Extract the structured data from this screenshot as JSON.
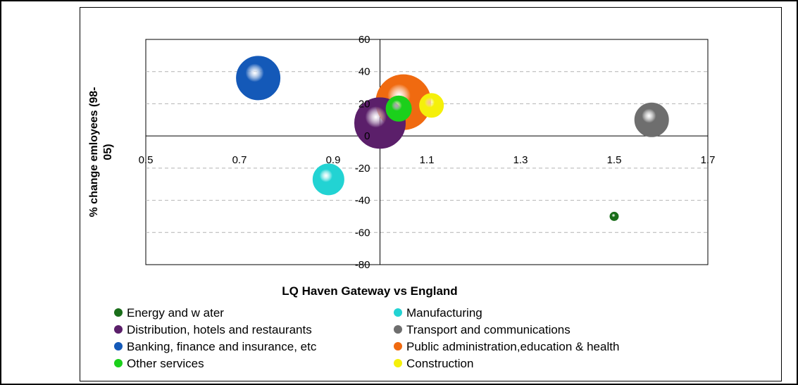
{
  "chart_data": {
    "type": "scatter",
    "title": "",
    "xlabel": "LQ Haven Gateway vs England",
    "ylabel_lines": [
      "% change emloyees (98-",
      "05)"
    ],
    "xlim": [
      0.5,
      1.7
    ],
    "ylim": [
      -80,
      60
    ],
    "x_ticks": [
      "0.5",
      "0.7",
      "0.9",
      "1.1",
      "1.3",
      "1.5",
      "1.7"
    ],
    "y_ticks": [
      "60",
      "40",
      "20",
      "0",
      "-20",
      "-40",
      "-60",
      "-80"
    ],
    "grid": "horizontal dashed",
    "legend_position": "bottom",
    "series": [
      {
        "name": "Energy and w ater",
        "color": "#1a6e1a",
        "x": 1.5,
        "y": -50,
        "size": 6
      },
      {
        "name": "Manufacturing",
        "color": "#22d3d3",
        "x": 0.89,
        "y": -27,
        "size": 22
      },
      {
        "name": "Distribution, hotels and restaurants",
        "color": "#5b1f6a",
        "x": 1.0,
        "y": 8,
        "size": 36
      },
      {
        "name": "Transport and communications",
        "color": "#6e6e6e",
        "x": 1.58,
        "y": 10,
        "size": 24
      },
      {
        "name": "Banking, finance and insurance, etc",
        "color": "#1459b8",
        "x": 0.74,
        "y": 36,
        "size": 31
      },
      {
        "name": "Public administration,education & health",
        "color": "#f06a10",
        "x": 1.05,
        "y": 21,
        "size": 39
      },
      {
        "name": "Other services",
        "color": "#1bd01b",
        "x": 1.04,
        "y": 17,
        "size": 18
      },
      {
        "name": "Construction",
        "color": "#f5f00a",
        "x": 1.11,
        "y": 19,
        "size": 17
      }
    ]
  }
}
